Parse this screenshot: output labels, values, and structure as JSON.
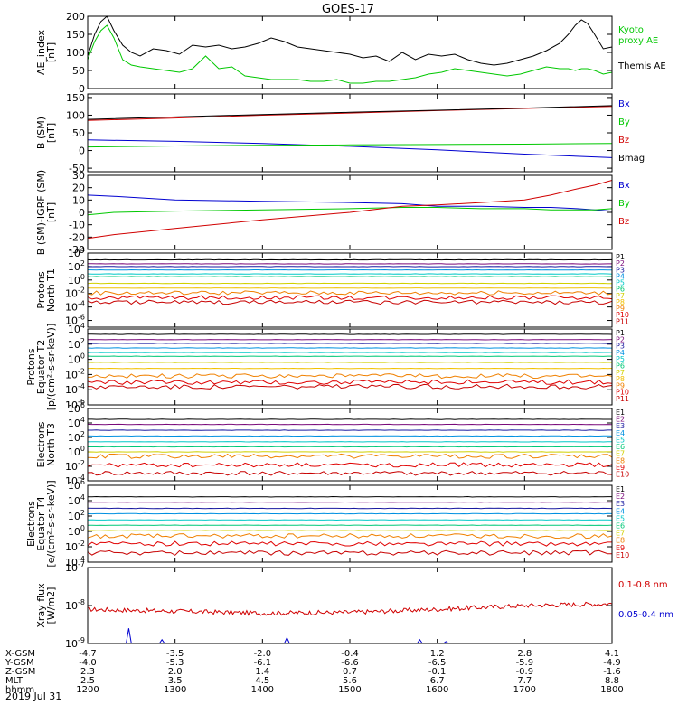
{
  "title": "GOES-17",
  "footer_date": "2019 Jul 31",
  "colors": {
    "black": "#000000",
    "green": "#00c800",
    "red": "#d00000",
    "blue": "#0000d0",
    "p_channels": [
      "#000000",
      "#7a0a7a",
      "#1a1aa0",
      "#0090e0",
      "#00c8c8",
      "#00c878",
      "#d0d000",
      "#f0c000",
      "#f08000",
      "#e00000",
      "#c80000"
    ],
    "e_channels": [
      "#000000",
      "#7a0a7a",
      "#1a1aa0",
      "#0090e0",
      "#00c8c8",
      "#00c878",
      "#d0d000",
      "#f08000",
      "#e00000",
      "#c80000"
    ]
  },
  "panels": [
    {
      "id": "ae",
      "ylabel": [
        "AE_index",
        "[nT]"
      ],
      "scale": "linear",
      "ylim": [
        0,
        200
      ],
      "yticks": [
        {
          "v": 0,
          "t": "0"
        },
        {
          "v": 50,
          "t": "50"
        },
        {
          "v": 100,
          "t": "100"
        },
        {
          "v": 150,
          "t": "150"
        },
        {
          "v": 200,
          "t": "200"
        }
      ],
      "legend": [
        {
          "text": "Kyoto",
          "color": "#00c800",
          "slot": 0
        },
        {
          "text": "proxy AE",
          "color": "#00c800",
          "slot": 1
        },
        {
          "text": "Themis AE",
          "color": "#000000",
          "slot": 3
        }
      ]
    },
    {
      "id": "bsm",
      "ylabel": [
        "B (SM)",
        "[nT]"
      ],
      "scale": "linear",
      "ylim": [
        -60,
        160
      ],
      "yticks": [
        {
          "v": -50,
          "t": "-50"
        },
        {
          "v": 0,
          "t": "0"
        },
        {
          "v": 50,
          "t": "50"
        },
        {
          "v": 100,
          "t": "100"
        },
        {
          "v": 150,
          "t": "150"
        }
      ],
      "legend": [
        {
          "text": "Bx",
          "color": "#0000d0",
          "slot": 0
        },
        {
          "text": "By",
          "color": "#00c800",
          "slot": 1
        },
        {
          "text": "Bz",
          "color": "#d00000",
          "slot": 2
        },
        {
          "text": "Bmag",
          "color": "#000000",
          "slot": 3
        }
      ]
    },
    {
      "id": "bigrf",
      "ylabel": [
        "B (SM)-IGRF (SM)",
        "[nT]"
      ],
      "scale": "linear",
      "ylim": [
        -30,
        30
      ],
      "yticks": [
        {
          "v": -30,
          "t": "-30"
        },
        {
          "v": -20,
          "t": "-20"
        },
        {
          "v": -10,
          "t": "-10"
        },
        {
          "v": 0,
          "t": "0"
        },
        {
          "v": 10,
          "t": "10"
        },
        {
          "v": 20,
          "t": "20"
        },
        {
          "v": 30,
          "t": "30"
        }
      ],
      "legend": [
        {
          "text": "Bx",
          "color": "#0000d0",
          "slot": 0
        },
        {
          "text": "By",
          "color": "#00c800",
          "slot": 1
        },
        {
          "text": "Bz",
          "color": "#d00000",
          "slot": 2
        }
      ]
    },
    {
      "id": "p1",
      "ylabel": [
        "Protons",
        "North T1"
      ],
      "scale": "log",
      "ylim": [
        -7,
        4
      ],
      "yticks": [
        {
          "v": 4,
          "t": "10^4"
        },
        {
          "v": 2,
          "t": "10^2"
        },
        {
          "v": 0,
          "t": "10^0"
        },
        {
          "v": -2,
          "t": "10^-2"
        },
        {
          "v": -4,
          "t": "10^-4"
        },
        {
          "v": -6,
          "t": "10^-6"
        }
      ],
      "channels": [
        "P1",
        "P2",
        "P3",
        "P4",
        "P5",
        "P6",
        "P7",
        "P8",
        "P9",
        "P10",
        "P11"
      ]
    },
    {
      "id": "p2",
      "ylabel": [
        "Protons",
        "Equator T2",
        "[p/(cm²-s-sr-keV)]"
      ],
      "scale": "log",
      "ylim": [
        -6,
        4
      ],
      "yticks": [
        {
          "v": 4,
          "t": "10^4"
        },
        {
          "v": 2,
          "t": "10^2"
        },
        {
          "v": 0,
          "t": "10^0"
        },
        {
          "v": -2,
          "t": "10^-2"
        },
        {
          "v": -4,
          "t": "10^-4"
        },
        {
          "v": -6,
          "t": "10^-6"
        }
      ],
      "channels": [
        "P1",
        "P2",
        "P3",
        "P4",
        "P5",
        "P6",
        "P7",
        "P8",
        "P9",
        "P10",
        "P11"
      ]
    },
    {
      "id": "e1",
      "ylabel": [
        "Electrons",
        "North T3"
      ],
      "scale": "log",
      "ylim": [
        -4,
        6
      ],
      "yticks": [
        {
          "v": 6,
          "t": "10^6"
        },
        {
          "v": 4,
          "t": "10^4"
        },
        {
          "v": 2,
          "t": "10^2"
        },
        {
          "v": 0,
          "t": "10^0"
        },
        {
          "v": -2,
          "t": "10^-2"
        },
        {
          "v": -4,
          "t": "10^-4"
        }
      ],
      "channels": [
        "E1",
        "E2",
        "E3",
        "E4",
        "E5",
        "E6",
        "E7",
        "E8",
        "E9",
        "E10"
      ]
    },
    {
      "id": "e2",
      "ylabel": [
        "Electrons",
        "Equator T4",
        "[e/(cm²-s-sr-keV)]"
      ],
      "scale": "log",
      "ylim": [
        -4,
        6
      ],
      "yticks": [
        {
          "v": 6,
          "t": "10^6"
        },
        {
          "v": 4,
          "t": "10^4"
        },
        {
          "v": 2,
          "t": "10^2"
        },
        {
          "v": 0,
          "t": "10^0"
        },
        {
          "v": -2,
          "t": "10^-2"
        },
        {
          "v": -4,
          "t": "10^-4"
        }
      ],
      "channels": [
        "E1",
        "E2",
        "E3",
        "E4",
        "E5",
        "E6",
        "E7",
        "E8",
        "E9",
        "E10"
      ]
    },
    {
      "id": "xray",
      "ylabel": [
        "Xray flux",
        "[W/m2]"
      ],
      "scale": "log",
      "ylim": [
        -9,
        -7
      ],
      "yticks": [
        {
          "v": -7,
          "t": "10^-7"
        },
        {
          "v": -8,
          "t": "10^-8"
        },
        {
          "v": -9,
          "t": "10^-9"
        }
      ],
      "legend": [
        {
          "text": "0.1-0.8 nm",
          "color": "#d00000",
          "slot": 0
        },
        {
          "text": "0.05-0.4 nm",
          "color": "#0000d0",
          "slot": 1
        }
      ]
    }
  ],
  "x_axis": {
    "xlim": [
      1200,
      1800
    ],
    "row_labels": [
      "X-GSM",
      "Y-GSM",
      "Z-GSM",
      "MLT",
      "hhmm"
    ],
    "ticks": [
      {
        "x": 1200,
        "values": [
          "-4.7",
          "-4.0",
          "2.3",
          "2.5",
          "1200"
        ]
      },
      {
        "x": 1300,
        "values": [
          "-3.5",
          "-5.3",
          "2.0",
          "3.5",
          "1300"
        ]
      },
      {
        "x": 1400,
        "values": [
          "-2.0",
          "-6.1",
          "1.4",
          "4.5",
          "1400"
        ]
      },
      {
        "x": 1500,
        "values": [
          "-0.4",
          "-6.6",
          "0.7",
          "5.6",
          "1500"
        ]
      },
      {
        "x": 1600,
        "values": [
          "1.2",
          "-6.5",
          "-0.1",
          "6.7",
          "1600"
        ]
      },
      {
        "x": 1700,
        "values": [
          "2.8",
          "-5.9",
          "-0.9",
          "7.7",
          "1700"
        ]
      },
      {
        "x": 1800,
        "values": [
          "4.1",
          "-4.9",
          "-1.6",
          "8.8",
          "1800"
        ]
      }
    ]
  },
  "chart_data": {
    "type": "line",
    "title": "GOES-17",
    "xlabel": "hhmm",
    "xlim": [
      1200,
      1800
    ],
    "panels": {
      "ae": {
        "x": [
          1200,
          1208,
          1215,
          1222,
          1230,
          1240,
          1250,
          1260,
          1275,
          1290,
          1305,
          1320,
          1335,
          1350,
          1365,
          1380,
          1395,
          1410,
          1425,
          1440,
          1455,
          1470,
          1485,
          1500,
          1515,
          1530,
          1545,
          1560,
          1575,
          1590,
          1605,
          1620,
          1635,
          1650,
          1665,
          1680,
          1695,
          1710,
          1725,
          1740,
          1750,
          1758,
          1765,
          1772,
          1780,
          1790,
          1800
        ],
        "series": [
          {
            "name": "Themis AE",
            "values": [
              90,
              150,
              185,
              200,
              160,
              120,
              100,
              90,
              110,
              105,
              95,
              120,
              115,
              120,
              110,
              115,
              125,
              140,
              130,
              115,
              110,
              105,
              100,
              95,
              85,
              90,
              75,
              100,
              80,
              95,
              90,
              95,
              80,
              70,
              65,
              70,
              80,
              90,
              105,
              125,
              150,
              175,
              190,
              180,
              150,
              110,
              115
            ]
          },
          {
            "name": "Kyoto proxy AE",
            "values": [
              80,
              130,
              160,
              175,
              140,
              80,
              65,
              60,
              55,
              50,
              45,
              55,
              90,
              55,
              60,
              35,
              30,
              25,
              25,
              25,
              20,
              20,
              25,
              15,
              15,
              20,
              20,
              25,
              30,
              40,
              45,
              55,
              50,
              45,
              40,
              35,
              40,
              50,
              60,
              55,
              55,
              50,
              55,
              55,
              50,
              40,
              45
            ]
          }
        ]
      },
      "bsm": {
        "x": [
          1200,
          1300,
          1400,
          1500,
          1600,
          1700,
          1800
        ],
        "series": [
          {
            "name": "Bx",
            "values": [
              30,
              26,
              20,
              12,
              2,
              -10,
              -20
            ]
          },
          {
            "name": "By",
            "values": [
              10,
              13,
              15,
              16,
              17,
              18,
              20
            ]
          },
          {
            "name": "Bz",
            "values": [
              85,
              92,
              100,
              106,
              113,
              119,
              125
            ]
          },
          {
            "name": "Bmag",
            "values": [
              88,
              95,
              102,
              108,
              114,
              120,
              127
            ]
          }
        ]
      },
      "bigrf": {
        "x": [
          1200,
          1230,
          1300,
          1400,
          1500,
          1560,
          1600,
          1650,
          1700,
          1730,
          1760,
          1780,
          1800
        ],
        "series": [
          {
            "name": "Bx",
            "values": [
              14,
              13,
              10,
              9,
              8,
              7,
              5,
              5,
              4,
              4,
              3,
              2,
              1
            ]
          },
          {
            "name": "By",
            "values": [
              -2,
              0,
              1,
              2,
              3,
              4,
              4,
              3,
              3,
              2,
              2,
              2,
              3
            ]
          },
          {
            "name": "Bz",
            "values": [
              -21,
              -18,
              -13,
              -6,
              0,
              5,
              6,
              8,
              10,
              14,
              19,
              22,
              26
            ]
          }
        ]
      },
      "p1": {
        "x": [
          1200,
          1800
        ],
        "channel_levels_log10": [
          3.0,
          2.4,
          2.0,
          1.5,
          0.9,
          0.5,
          -0.5,
          -1.2,
          -1.9,
          -2.6,
          -3.3
        ]
      },
      "p2": {
        "x": [
          1200,
          1800
        ],
        "channel_levels_log10": [
          3.3,
          2.6,
          2.1,
          1.5,
          0.9,
          0.4,
          -0.4,
          -1.2,
          -2.2,
          -3.0,
          -3.6
        ]
      },
      "e1": {
        "x": [
          1200,
          1800
        ],
        "channel_levels_log10": [
          4.5,
          3.8,
          3.0,
          2.2,
          1.4,
          0.7,
          0.0,
          -0.6,
          -1.8,
          -3.0
        ]
      },
      "e2": {
        "x": [
          1200,
          1800
        ],
        "channel_levels_log10": [
          4.5,
          3.8,
          3.0,
          2.3,
          1.5,
          0.8,
          0.1,
          -0.6,
          -1.6,
          -2.8
        ]
      },
      "xray": {
        "x": [
          1200,
          1300,
          1400,
          1500,
          1600,
          1700,
          1800
        ],
        "series": [
          {
            "name": "0.1-0.8 nm",
            "values_log10": [
              -8.1,
              -8.15,
              -8.2,
              -8.18,
              -8.1,
              -8.0,
              -7.95
            ]
          },
          {
            "name": "0.05-0.4 nm",
            "values_log10": [
              -9.0,
              -9.0,
              -9.0,
              -9.0,
              -9.0,
              -9.0,
              -9.0
            ]
          },
          {
            "name": "0.05-0.4 nm spikes",
            "x": [
              1247,
              1285,
              1428,
              1580,
              1610
            ],
            "values_log10": [
              -8.6,
              -8.9,
              -8.85,
              -8.9,
              -8.95
            ]
          }
        ]
      }
    }
  }
}
